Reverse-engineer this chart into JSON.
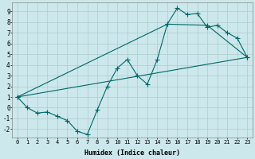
{
  "bg_color": "#cce8ec",
  "grid_color": "#aacccc",
  "line_color": "#006666",
  "xlabel": "Humidex (Indice chaleur)",
  "xticks": [
    0,
    1,
    2,
    3,
    4,
    5,
    6,
    7,
    8,
    9,
    10,
    11,
    12,
    13,
    14,
    15,
    16,
    17,
    18,
    19,
    20,
    21,
    22,
    23
  ],
  "yticks": [
    -2,
    -1,
    0,
    1,
    2,
    3,
    4,
    5,
    6,
    7,
    8,
    9
  ],
  "xlim": [
    -0.5,
    23.5
  ],
  "ylim": [
    -2.8,
    9.8
  ],
  "curve1_x": [
    0,
    1,
    2,
    3,
    4,
    5,
    6,
    7,
    8,
    9,
    10,
    11,
    12,
    13,
    14,
    15,
    16,
    17,
    18,
    19,
    20,
    21,
    22,
    23
  ],
  "curve1_y": [
    1.0,
    0.0,
    -0.5,
    -0.4,
    -0.8,
    -1.2,
    -2.2,
    -2.5,
    -0.2,
    2.0,
    3.7,
    4.5,
    3.0,
    2.2,
    4.5,
    7.8,
    9.3,
    8.7,
    8.8,
    7.5,
    7.7,
    7.0,
    6.5,
    4.7
  ],
  "curve2_x": [
    0,
    23
  ],
  "curve2_y": [
    1.0,
    4.7
  ],
  "curve3_x": [
    0,
    15,
    19,
    23
  ],
  "curve3_y": [
    1.0,
    7.8,
    7.7,
    4.7
  ],
  "xlabel_fontsize": 6.0,
  "tick_fontsize": 5.0
}
